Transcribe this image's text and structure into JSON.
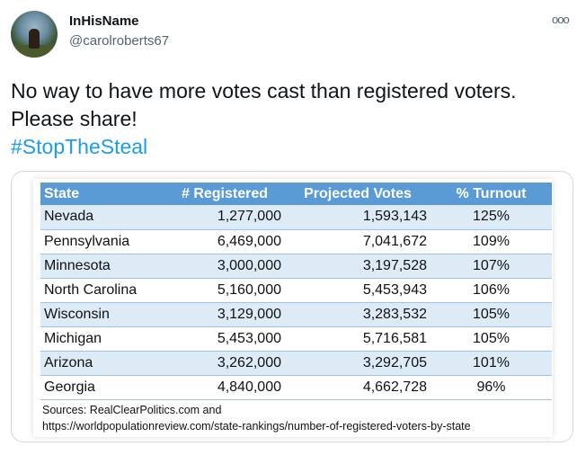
{
  "tweet": {
    "display_name": "InHisName",
    "handle": "@carolroberts67",
    "text": "No way to have more votes cast than registered voters. Please share!",
    "hashtag": "#StopTheSteal",
    "more_icon": "ellipsis-icon"
  },
  "image": {
    "table": {
      "headers": [
        "State",
        "# Registered",
        "Projected Votes",
        "% Turnout"
      ],
      "rows": [
        [
          "Nevada",
          "1,277,000",
          "1,593,143",
          "125%"
        ],
        [
          "Pennsylvania",
          "6,469,000",
          "7,041,672",
          "109%"
        ],
        [
          "Minnesota",
          "3,000,000",
          "3,197,528",
          "107%"
        ],
        [
          "North Carolina",
          "5,160,000",
          "5,453,943",
          "106%"
        ],
        [
          "Wisconsin",
          "3,129,000",
          "3,283,532",
          "105%"
        ],
        [
          "Michigan",
          "5,453,000",
          "5,716,581",
          "105%"
        ],
        [
          "Arizona",
          "3,262,000",
          "3,292,705",
          "101%"
        ],
        [
          "Georgia",
          "4,840,000",
          "4,662,728",
          "96%"
        ]
      ]
    },
    "sources_line1": "Sources: RealClearPolitics.com and",
    "sources_line2": "https://worldpopulationreview.com/state-rankings/number-of-registered-voters-by-state"
  },
  "colors": {
    "header_blue": "#5b9bd5",
    "row_stripe": "#ddebf7",
    "hashtag": "#1d9bf0"
  }
}
